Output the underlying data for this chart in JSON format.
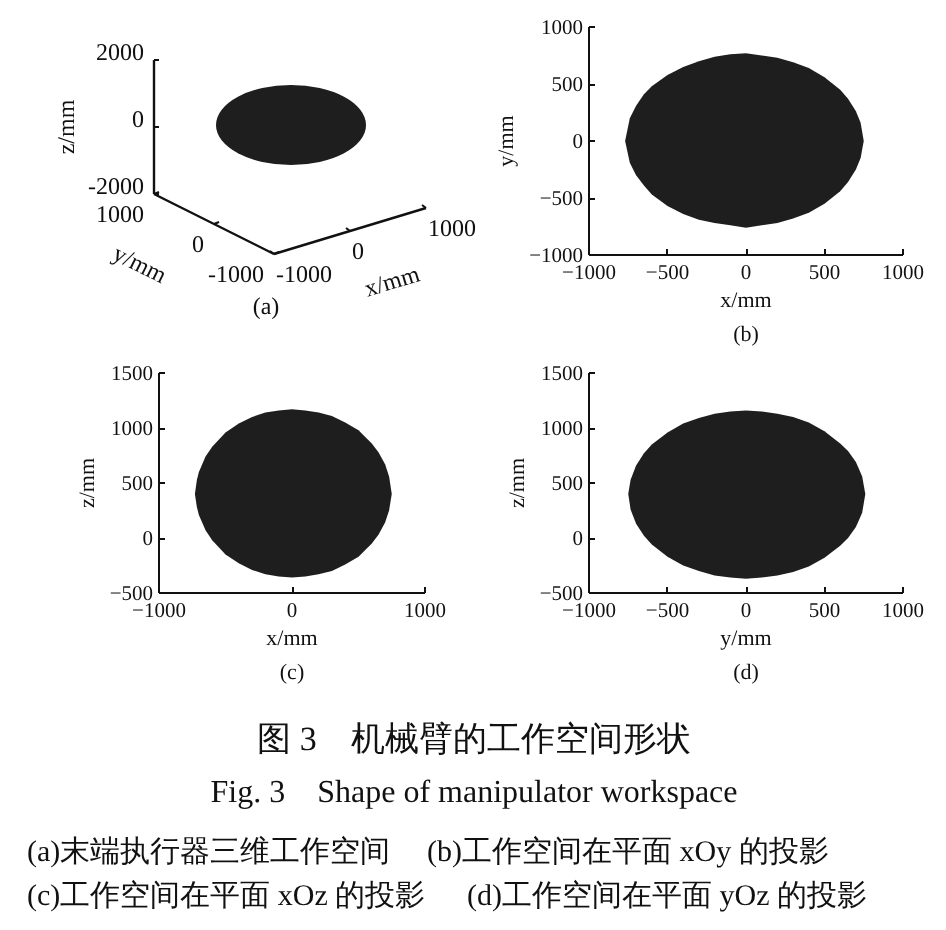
{
  "chart_data": [
    {
      "type": "other",
      "title": "(a)",
      "xlabel": "x/mm",
      "ylabel": "z/mm",
      "x2label": "y/mm",
      "annotations": [
        "2000",
        "0",
        "-2000",
        "1000",
        "0",
        "-1000",
        "-1000",
        "0",
        "1000"
      ]
    },
    {
      "type": "area",
      "title": "(b)",
      "xlabel": "x/mm",
      "ylabel": "y/mm",
      "xlim": [
        -1000,
        1000
      ],
      "xticks": [
        -1000,
        -500,
        0,
        500,
        1000
      ],
      "ylim": [
        -1000,
        1000
      ],
      "yticks": [
        -1000,
        -500,
        0,
        500,
        1000
      ],
      "series": [
        {
          "color": "#1e1e1e",
          "x": [
            -770,
            -740,
            -700,
            -650,
            -600,
            -500,
            -400,
            -300,
            -200,
            -100,
            0,
            100,
            200,
            300,
            400,
            500,
            600,
            650,
            700,
            730,
            750,
            730,
            700,
            650,
            600,
            500,
            400,
            300,
            200,
            100,
            0,
            -100,
            -200,
            -300,
            -400,
            -500,
            -600,
            -650,
            -700,
            -740
          ],
          "values": [
            0,
            200,
            310,
            410,
            480,
            580,
            650,
            700,
            740,
            760,
            770,
            750,
            730,
            690,
            640,
            560,
            450,
            370,
            260,
            160,
            0,
            -150,
            -250,
            -360,
            -440,
            -550,
            -630,
            -680,
            -720,
            -740,
            -760,
            -740,
            -720,
            -690,
            -640,
            -570,
            -470,
            -390,
            -300,
            -190
          ]
        }
      ]
    },
    {
      "type": "area",
      "title": "(c)",
      "xlabel": "x/mm",
      "ylabel": "z/mm",
      "xlim": [
        -1000,
        1000
      ],
      "xticks": [
        -1000,
        0,
        1000
      ],
      "ylim": [
        -500,
        1500
      ],
      "yticks": [
        -500,
        0,
        500,
        1000,
        1500
      ],
      "series": [
        {
          "color": "#1e1e1e",
          "x": [
            -730,
            -715,
            -700,
            -650,
            -600,
            -500,
            -400,
            -300,
            -200,
            -100,
            0,
            100,
            200,
            300,
            400,
            500,
            600,
            650,
            700,
            730,
            750,
            730,
            700,
            650,
            600,
            500,
            400,
            300,
            200,
            100,
            0,
            -100,
            -200,
            -300,
            -400,
            -500,
            -600,
            -650,
            -700,
            -715
          ],
          "values": [
            400,
            530,
            600,
            740,
            830,
            960,
            1040,
            1100,
            1140,
            1160,
            1170,
            1160,
            1140,
            1110,
            1050,
            980,
            860,
            780,
            670,
            560,
            400,
            250,
            140,
            30,
            -50,
            -170,
            -240,
            -300,
            -330,
            -350,
            -360,
            -350,
            -330,
            -290,
            -230,
            -150,
            -20,
            70,
            210,
            280
          ]
        }
      ]
    },
    {
      "type": "area",
      "title": "(d)",
      "xlabel": "y/mm",
      "ylabel": "z/mm",
      "xlim": [
        -1000,
        1000
      ],
      "xticks": [
        -1000,
        -500,
        0,
        500,
        1000
      ],
      "ylim": [
        -500,
        1500
      ],
      "yticks": [
        -500,
        0,
        500,
        1000,
        1500
      ],
      "series": [
        {
          "color": "#1e1e1e",
          "x": [
            -750,
            -735,
            -700,
            -650,
            -600,
            -500,
            -400,
            -300,
            -200,
            -100,
            0,
            100,
            200,
            300,
            400,
            500,
            600,
            650,
            700,
            740,
            760,
            740,
            700,
            650,
            600,
            500,
            400,
            300,
            200,
            100,
            0,
            -100,
            -200,
            -300,
            -400,
            -500,
            -600,
            -650,
            -700,
            -735
          ],
          "values": [
            400,
            530,
            660,
            770,
            850,
            960,
            1040,
            1090,
            1130,
            1150,
            1160,
            1150,
            1130,
            1100,
            1050,
            970,
            860,
            790,
            690,
            560,
            400,
            230,
            100,
            0,
            -70,
            -180,
            -260,
            -310,
            -340,
            -360,
            -370,
            -360,
            -340,
            -300,
            -250,
            -170,
            -60,
            20,
            130,
            260
          ]
        }
      ]
    },
    {
      "type": "other",
      "title": "图 3　机械臂的工作空间形状",
      "subtitle": "Fig. 3　Shape of manipulator workspace",
      "annotations": [
        "(a)末端执行器三维工作空间",
        "(b)工作空间在平面 xOy 的投影",
        "(c)工作空间在平面 xOz 的投影",
        "(d)工作空间在平面 yOz 的投影"
      ]
    }
  ]
}
